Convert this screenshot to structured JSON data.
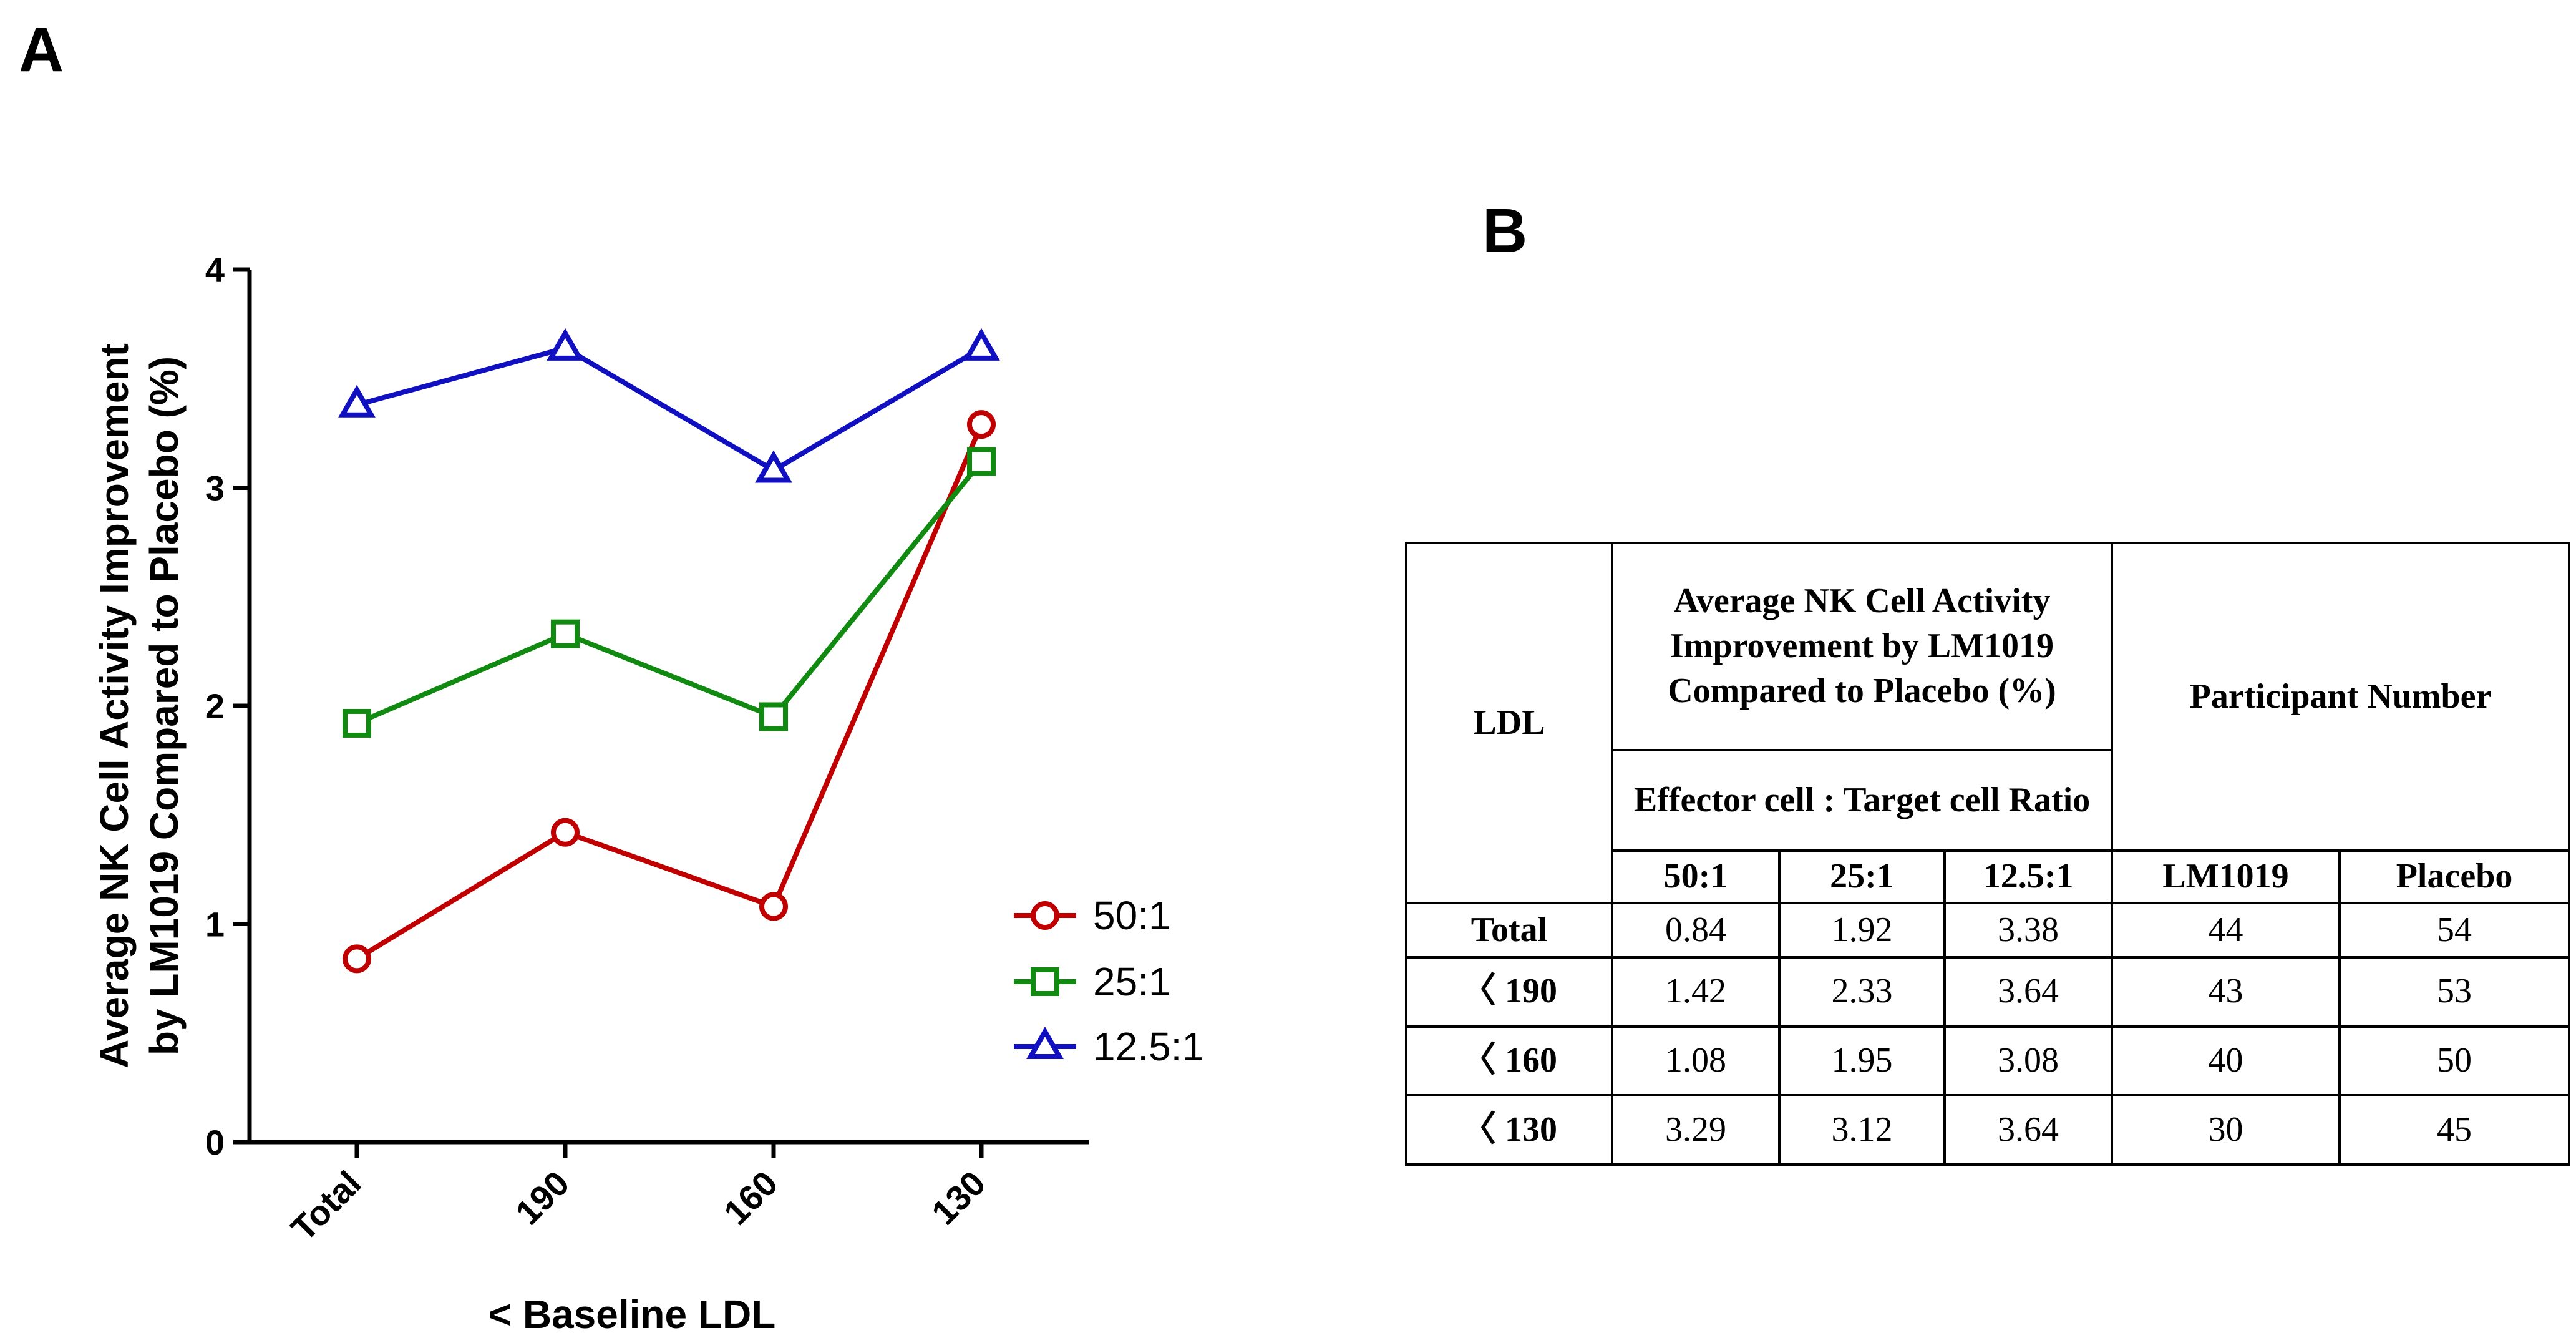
{
  "panel_labels": {
    "a": "A",
    "b": "B"
  },
  "chart_data": {
    "type": "line",
    "categories": [
      "Total",
      "190",
      "160",
      "130"
    ],
    "xlabel": "< Baseline LDL",
    "ylabel_line1": "Average NK Cell Activity Improvement",
    "ylabel_line2": "by LM1019 Compared to Placebo (%)",
    "ylim": [
      0,
      4
    ],
    "yticks": [
      0,
      1,
      2,
      3,
      4
    ],
    "series": [
      {
        "name": "50:1",
        "color": "#c00000",
        "marker": "circle",
        "values": [
          0.84,
          1.42,
          1.08,
          3.29
        ]
      },
      {
        "name": "25:1",
        "color": "#108a10",
        "marker": "square",
        "values": [
          1.92,
          2.33,
          1.95,
          3.12
        ]
      },
      {
        "name": "12.5:1",
        "color": "#1010c0",
        "marker": "triangle",
        "values": [
          3.38,
          3.64,
          3.08,
          3.64
        ]
      }
    ],
    "legend_position": "right"
  },
  "table": {
    "ldl_header": "LDL",
    "improvement_header": "Average NK Cell Activity Improvement by LM1019 Compared to Placebo (%)",
    "ratio_header": "Effector cell : Target cell Ratio",
    "participant_header": "Participant Number",
    "sub_headers": [
      "50:1",
      "25:1",
      "12.5:1",
      "LM1019",
      "Placebo"
    ],
    "rows": [
      {
        "label": "Total",
        "values": [
          "0.84",
          "1.92",
          "3.38",
          "44",
          "54"
        ]
      },
      {
        "label": "〈 190",
        "values": [
          "1.42",
          "2.33",
          "3.64",
          "43",
          "53"
        ]
      },
      {
        "label": "〈 160",
        "values": [
          "1.08",
          "1.95",
          "3.08",
          "40",
          "50"
        ]
      },
      {
        "label": "〈 130",
        "values": [
          "3.29",
          "3.12",
          "3.64",
          "30",
          "45"
        ]
      }
    ]
  }
}
